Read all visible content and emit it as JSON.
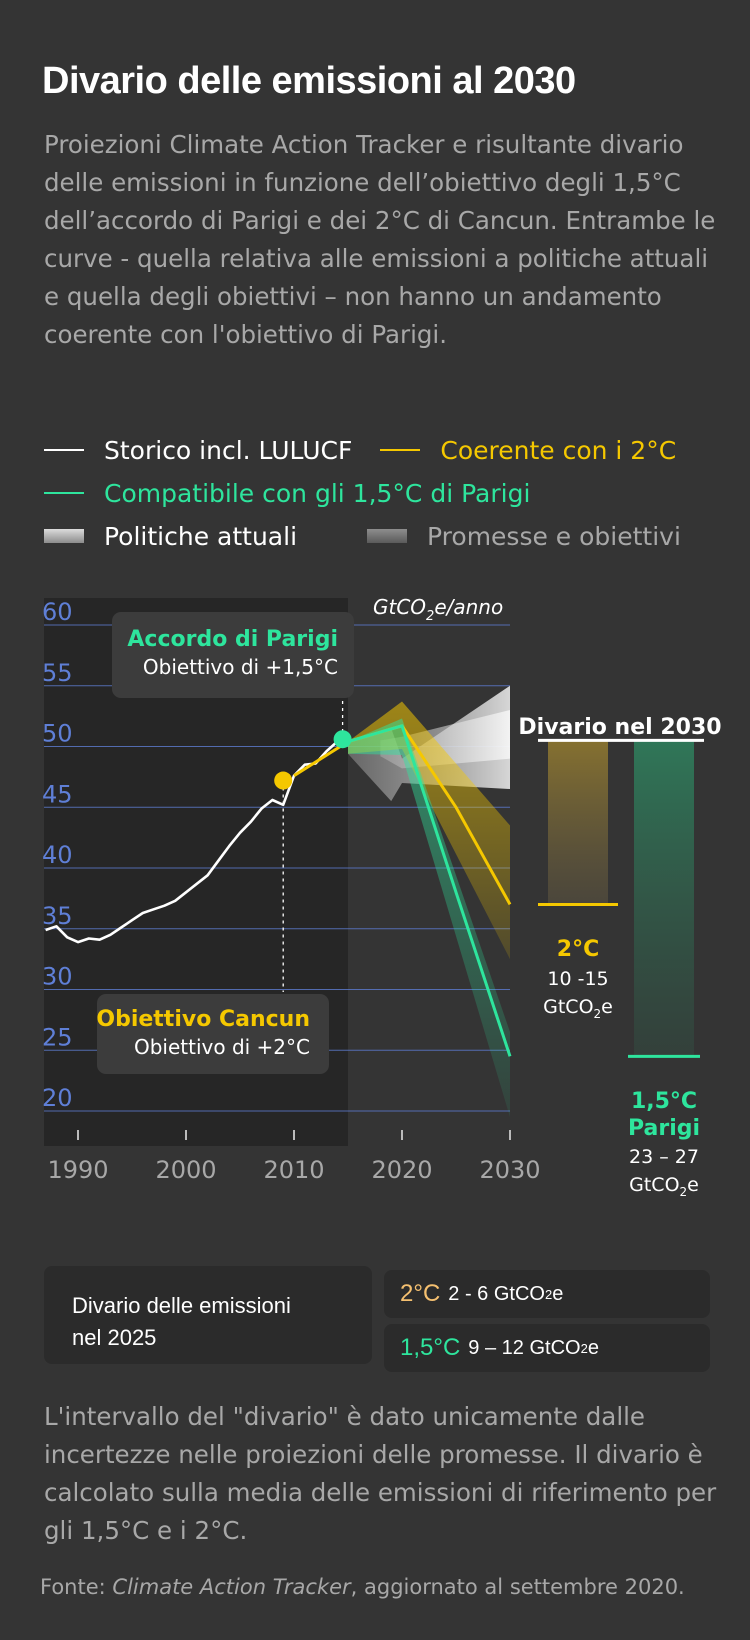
{
  "header": {
    "title": "Divario delle emissioni al 2030",
    "subtitle": "Proiezioni Climate Action Tracker e risultante divario delle emissioni in funzione dell’obiettivo degli 1,5°C dell’accordo di Parigi e dei 2°C di Cancun. Entrambe le curve - quella relativa alle emissioni a politiche attuali e quella degli obiettivi – non hanno un andamento coerente con l'obiettivo di Parigi."
  },
  "legend": {
    "historic": "Storico incl. LULUCF",
    "two_deg": "Coerente con i 2°C",
    "one_five": "Compatibile con gli 1,5°C di Parigi",
    "policies": "Politiche attuali",
    "pledges": "Promesse e obiettivi"
  },
  "colors": {
    "background": "#343434",
    "historic": "#ffffff",
    "two_deg": "#f5c800",
    "one_five": "#2ee59d",
    "grid": "#5a78c8",
    "tick_label_y": "#5f7fd6",
    "muted": "#a8a8a8"
  },
  "chart_data": {
    "type": "line",
    "ylabel_prefix": "GtCO",
    "ylabel_sub": "2",
    "ylabel_suffix": "e/anno",
    "xlim": [
      1987,
      2030
    ],
    "ylim": [
      18,
      62
    ],
    "x_ticks": [
      1990,
      2000,
      2010,
      2020,
      2030
    ],
    "y_ticks": [
      20,
      25,
      30,
      35,
      40,
      45,
      50,
      55,
      60
    ],
    "series": [
      {
        "name": "Storico incl. LULUCF",
        "color": "#ffffff",
        "points": [
          [
            1987,
            34.9
          ],
          [
            1988,
            35.2
          ],
          [
            1989,
            34.3
          ],
          [
            1990,
            33.9
          ],
          [
            1991,
            34.2
          ],
          [
            1992,
            34.1
          ],
          [
            1993,
            34.5
          ],
          [
            1994,
            35.1
          ],
          [
            1995,
            35.7
          ],
          [
            1996,
            36.3
          ],
          [
            1997,
            36.6
          ],
          [
            1998,
            36.9
          ],
          [
            1999,
            37.3
          ],
          [
            2000,
            38.0
          ],
          [
            2001,
            38.7
          ],
          [
            2002,
            39.4
          ],
          [
            2003,
            40.6
          ],
          [
            2004,
            41.8
          ],
          [
            2005,
            42.9
          ],
          [
            2006,
            43.8
          ],
          [
            2007,
            44.9
          ],
          [
            2008,
            45.6
          ],
          [
            2009,
            45.2
          ],
          [
            2010,
            47.6
          ],
          [
            2011,
            48.5
          ],
          [
            2012,
            48.6
          ],
          [
            2013,
            49.6
          ],
          [
            2014,
            50.4
          ],
          [
            2015,
            50.6
          ]
        ]
      },
      {
        "name": "Coerente con i 2°C",
        "color": "#f5c800",
        "points": [
          [
            2010,
            47.6
          ],
          [
            2015,
            50.4
          ],
          [
            2020,
            51.7
          ],
          [
            2025,
            45.0
          ],
          [
            2030,
            37.0
          ]
        ]
      },
      {
        "name": "Compatibile con gli 1,5°C di Parigi",
        "color": "#2ee59d",
        "points": [
          [
            2015,
            50.4
          ],
          [
            2020,
            51.7
          ],
          [
            2025,
            38.0
          ],
          [
            2030,
            24.5
          ]
        ]
      }
    ],
    "bands": [
      {
        "name": "two_deg_range",
        "color": "#f5c800",
        "upper": [
          [
            2015,
            50.4
          ],
          [
            2020,
            53.7
          ],
          [
            2030,
            43.5
          ]
        ],
        "lower": [
          [
            2030,
            32.5
          ],
          [
            2020,
            49.8
          ],
          [
            2015,
            49.4
          ]
        ]
      },
      {
        "name": "one_five_range",
        "color": "#2ee59d",
        "upper": [
          [
            2015,
            50.4
          ],
          [
            2020,
            52.3
          ],
          [
            2030,
            26.5
          ]
        ],
        "lower": [
          [
            2030,
            19.5
          ],
          [
            2020,
            49.3
          ],
          [
            2015,
            49.4
          ]
        ]
      },
      {
        "name": "Politiche attuali",
        "color": "#c8c8c8",
        "upper": [
          [
            2015,
            50.4
          ],
          [
            2019,
            51.5
          ],
          [
            2020,
            49.0
          ],
          [
            2030,
            55.0
          ]
        ],
        "lower": [
          [
            2030,
            46.5
          ],
          [
            2020,
            47.0
          ],
          [
            2019,
            45.5
          ],
          [
            2015,
            49.4
          ]
        ]
      },
      {
        "name": "Promesse e obiettivi",
        "color": "#d8d8d8",
        "upper": [
          [
            2018,
            50.5
          ],
          [
            2020,
            50.8
          ],
          [
            2030,
            53.0
          ]
        ],
        "lower": [
          [
            2030,
            49.0
          ],
          [
            2020,
            48.2
          ],
          [
            2018,
            49.2
          ]
        ]
      }
    ],
    "shaded_region_x": [
      1987,
      2015
    ],
    "markers": [
      {
        "name": "cancun",
        "x": 2009,
        "y": 47.2,
        "color": "#f5c800"
      },
      {
        "name": "paris",
        "x": 2014.5,
        "y": 50.6,
        "color": "#2ee59d"
      }
    ],
    "annotations": {
      "paris": {
        "title": "Accordo di Parigi",
        "text": "Obiettivo di +1,5°C"
      },
      "cancun": {
        "title": "Obiettivo Cancun",
        "text": "Obiettivo di +2°C"
      }
    }
  },
  "gap2030": {
    "title": "Divario nel 2030",
    "reference_value": 50.5,
    "two_deg": {
      "label": "2°C",
      "line1": "10 -15",
      "line2_prefix": "GtCO",
      "line2_sub": "2",
      "line2_suffix": "e",
      "value": 37.0
    },
    "one_five": {
      "label1": "1,5°C",
      "label2": "Parigi",
      "line1": "23 – 27",
      "line2_prefix": "GtCO",
      "line2_sub": "2",
      "line2_suffix": "e",
      "value": 24.5
    }
  },
  "gap2025": {
    "label": "Divario delle emissioni nel 2025",
    "rows": [
      {
        "key": "2°C",
        "value": "2 - 6 GtCO",
        "sub": "2",
        "suffix": "e",
        "color": "#f5c070"
      },
      {
        "key": "1,5°C",
        "value": "9 – 12 GtCO",
        "sub": "2",
        "suffix": "e",
        "color": "#2ee59d"
      }
    ]
  },
  "footer": {
    "note": "L'intervallo del \"divario\" è dato unicamente dalle incertezze nelle proiezioni delle promesse. Il divario è calcolato sulla media delle emissioni di riferimento per gli 1,5°C e i 2°C.",
    "source_prefix": "Fonte: ",
    "source_italic": "Climate Action Tracker",
    "source_suffix": ", aggiornato al settembre 2020."
  }
}
